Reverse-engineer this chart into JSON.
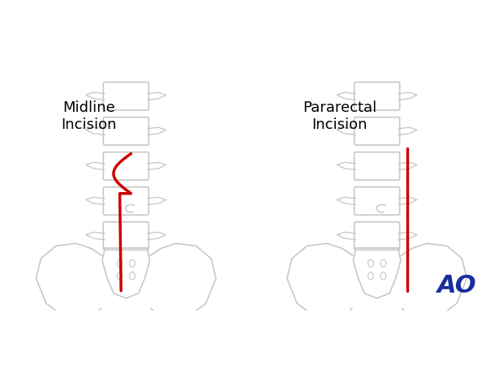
{
  "background_color": "#ffffff",
  "title_left": "Midline\nIncision",
  "title_right": "Pararectal\nIncision",
  "title_fontsize": 13,
  "incision_color": "#cc0000",
  "incision_linewidth": 2.5,
  "spine_color": "#c8c8c8",
  "spine_linewidth": 1.2,
  "ao_text": "AO",
  "ao_color": "#1a2d9e",
  "ao_fontsize": 22,
  "figsize": [
    6.2,
    4.59
  ],
  "dpi": 100
}
